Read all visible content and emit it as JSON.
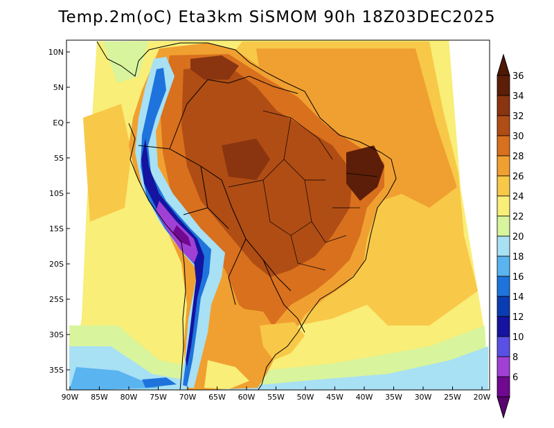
{
  "title": "Temp.2m(oC) Eta3km SiSMOM 90h 18Z03DEC2025",
  "map": {
    "variable": "2 m air temperature",
    "units": "oC",
    "lat_labels": [
      "10N",
      "5N",
      "EQ",
      "5S",
      "10S",
      "15S",
      "20S",
      "25S",
      "30S",
      "35S"
    ],
    "lon_labels": [
      "90W",
      "85W",
      "80W",
      "75W",
      "70W",
      "65W",
      "60W",
      "55W",
      "50W",
      "45W",
      "40W",
      "35W",
      "30W",
      "25W",
      "20W"
    ]
  },
  "colorbar": {
    "labels": [
      "36",
      "34",
      "32",
      "30",
      "28",
      "26",
      "24",
      "22",
      "20",
      "18",
      "16",
      "14",
      "12",
      "10",
      "8",
      "6"
    ],
    "colors": [
      "#5c1e08",
      "#8a3510",
      "#b04d14",
      "#d8701e",
      "#f0a030",
      "#f8c848",
      "#f8ee78",
      "#d8f49c",
      "#a8e0f4",
      "#5ab4f0",
      "#1e74dc",
      "#0a3cb4",
      "#1414a0",
      "#5a50e6",
      "#a040d4",
      "#700890"
    ],
    "top_color": "#4e1804",
    "bottom_color": "#5a0470"
  }
}
